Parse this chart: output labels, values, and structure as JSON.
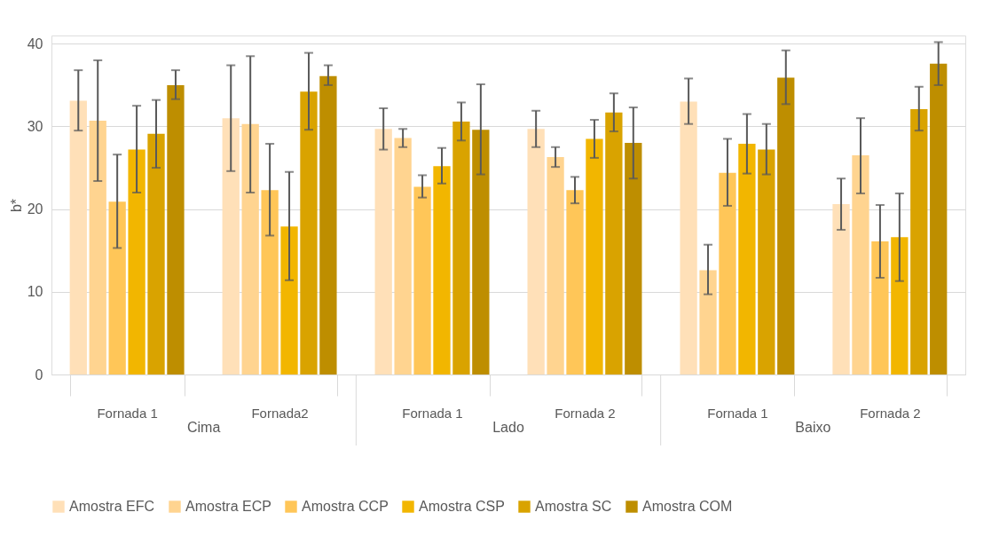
{
  "chart_data": {
    "type": "bar",
    "ylabel": "b*",
    "categories": [
      "Fornada 1",
      "Fornada2",
      "Fornada 1",
      "Fornada 2",
      "Fornada 1",
      "Fornada 2"
    ],
    "annotations": [
      "Cima",
      "Lado",
      "Baixo"
    ],
    "ylim": [
      0,
      41
    ],
    "yticks": [
      0,
      10,
      20,
      30,
      40
    ],
    "grid": "y",
    "legend": "bottom",
    "series": [
      {
        "name": "Amostra EFC",
        "color": "#ffe0b8",
        "values": [
          33.1,
          31.0,
          29.7,
          29.7,
          33.0,
          20.6
        ],
        "errors": [
          [
            29.5,
            36.8
          ],
          [
            24.6,
            37.4
          ],
          [
            27.2,
            32.2
          ],
          [
            27.5,
            31.9
          ],
          [
            30.3,
            35.8
          ],
          [
            17.5,
            23.7
          ]
        ]
      },
      {
        "name": "Amostra ECP",
        "color": "#ffd490",
        "values": [
          30.7,
          30.3,
          28.6,
          26.3,
          12.6,
          26.5
        ],
        "errors": [
          [
            23.4,
            38.0
          ],
          [
            22.0,
            38.5
          ],
          [
            27.5,
            29.7
          ],
          [
            25.1,
            27.5
          ],
          [
            9.7,
            15.7
          ],
          [
            21.9,
            31.0
          ]
        ]
      },
      {
        "name": "Amostra CCP",
        "color": "#ffc658",
        "values": [
          20.9,
          22.3,
          22.7,
          22.3,
          24.4,
          16.1
        ],
        "errors": [
          [
            15.3,
            26.6
          ],
          [
            16.8,
            27.9
          ],
          [
            21.4,
            24.1
          ],
          [
            20.7,
            23.9
          ],
          [
            20.4,
            28.5
          ],
          [
            11.7,
            20.5
          ]
        ]
      },
      {
        "name": "Amostra CSP",
        "color": "#f2b600",
        "values": [
          27.2,
          17.9,
          25.2,
          28.5,
          27.9,
          16.6
        ],
        "errors": [
          [
            22.0,
            32.5
          ],
          [
            11.4,
            24.5
          ],
          [
            23.1,
            27.4
          ],
          [
            26.2,
            30.8
          ],
          [
            24.3,
            31.5
          ],
          [
            11.3,
            21.9
          ]
        ]
      },
      {
        "name": "Amostra SC",
        "color": "#d9a300",
        "values": [
          29.1,
          34.2,
          30.6,
          31.7,
          27.2,
          32.1
        ],
        "errors": [
          [
            25.0,
            33.2
          ],
          [
            29.6,
            38.9
          ],
          [
            28.3,
            32.9
          ],
          [
            29.4,
            34.0
          ],
          [
            24.2,
            30.3
          ],
          [
            29.5,
            34.8
          ]
        ]
      },
      {
        "name": "Amostra COM",
        "color": "#be8e00",
        "values": [
          35.0,
          36.1,
          29.6,
          28.0,
          35.9,
          37.6
        ],
        "errors": [
          [
            33.3,
            36.8
          ],
          [
            35.0,
            37.4
          ],
          [
            24.2,
            35.1
          ],
          [
            23.7,
            32.3
          ],
          [
            32.7,
            39.2
          ],
          [
            35.0,
            40.2
          ]
        ]
      }
    ]
  }
}
